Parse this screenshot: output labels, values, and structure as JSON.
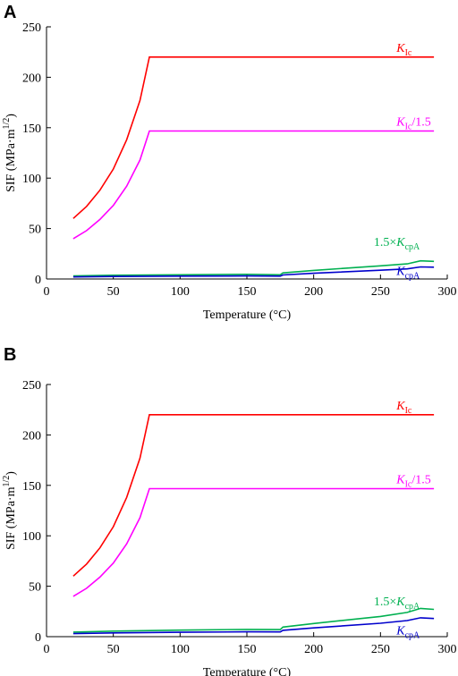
{
  "chart_data": [
    {
      "panel": "A",
      "type": "line",
      "xlabel": "Temperature (°C)",
      "ylabel_main": "SIF (MPa·m",
      "ylabel_sup": "1/2",
      "ylabel_close": ")",
      "xlim": [
        0,
        300
      ],
      "ylim": [
        0,
        250
      ],
      "xticks": [
        "0",
        "50",
        "100",
        "150",
        "200",
        "250",
        "300"
      ],
      "yticks": [
        "0",
        "50",
        "100",
        "150",
        "200",
        "250"
      ],
      "series": [
        {
          "key": "kic",
          "color": "#ff0000",
          "label_main": "K",
          "label_sub": "Ic",
          "label_suffix": "",
          "label_x": 262,
          "label_y": 225,
          "x": [
            20,
            30,
            40,
            50,
            60,
            70,
            77,
            100,
            150,
            200,
            250,
            290
          ],
          "y": [
            60,
            72,
            88,
            109,
            138,
            177,
            220,
            220,
            220,
            220,
            220,
            220
          ]
        },
        {
          "key": "kic15",
          "color": "#ff00ff",
          "label_main": "K",
          "label_sub": "Ic",
          "label_suffix": "/1.5",
          "label_x": 262,
          "label_y": 152,
          "x": [
            20,
            30,
            40,
            50,
            60,
            70,
            77,
            100,
            150,
            200,
            250,
            290
          ],
          "y": [
            40,
            48,
            59,
            73,
            92,
            118,
            146.7,
            146.7,
            146.7,
            146.7,
            146.7,
            146.7
          ]
        },
        {
          "key": "k15",
          "color": "#00b050",
          "label_main": "K",
          "label_sub": "cpA",
          "label_suffix": "",
          "label_prefix": "1.5×",
          "label_x": 245,
          "label_y": 33,
          "x": [
            20,
            50,
            100,
            150,
            175,
            177,
            200,
            250,
            270,
            280,
            290
          ],
          "y": [
            3,
            3.7,
            4.2,
            4.6,
            4.2,
            6,
            8.5,
            13,
            15,
            18,
            17.5
          ]
        },
        {
          "key": "kcpa",
          "color": "#0000cc",
          "label_main": "K",
          "label_sub": "cpA",
          "label_suffix": "",
          "label_prefix": "",
          "label_x": 262,
          "label_y": 4,
          "x": [
            20,
            50,
            100,
            150,
            175,
            177,
            200,
            250,
            270,
            280,
            290
          ],
          "y": [
            2,
            2.5,
            2.8,
            3,
            2.8,
            4,
            5.7,
            8.7,
            10,
            12,
            11.7
          ]
        }
      ]
    },
    {
      "panel": "B",
      "type": "line",
      "xlabel": "Temperature (°C)",
      "ylabel_main": "SIF (MPa·m",
      "ylabel_sup": "1/2",
      "ylabel_close": ")",
      "xlim": [
        0,
        300
      ],
      "ylim": [
        0,
        250
      ],
      "xticks": [
        "0",
        "50",
        "100",
        "150",
        "200",
        "250",
        "300"
      ],
      "yticks": [
        "0",
        "50",
        "100",
        "150",
        "200",
        "250"
      ],
      "series": [
        {
          "key": "kic",
          "color": "#ff0000",
          "label_main": "K",
          "label_sub": "Ic",
          "label_suffix": "",
          "label_x": 262,
          "label_y": 225,
          "x": [
            20,
            30,
            40,
            50,
            60,
            70,
            77,
            100,
            150,
            200,
            250,
            290
          ],
          "y": [
            60,
            72,
            88,
            109,
            138,
            177,
            220,
            220,
            220,
            220,
            220,
            220
          ]
        },
        {
          "key": "kic15",
          "color": "#ff00ff",
          "label_main": "K",
          "label_sub": "Ic",
          "label_suffix": "/1.5",
          "label_x": 262,
          "label_y": 152,
          "x": [
            20,
            30,
            40,
            50,
            60,
            70,
            77,
            100,
            150,
            200,
            250,
            290
          ],
          "y": [
            40,
            48,
            59,
            73,
            92,
            118,
            146.7,
            146.7,
            146.7,
            146.7,
            146.7,
            146.7
          ]
        },
        {
          "key": "k15",
          "color": "#00b050",
          "label_main": "K",
          "label_sub": "cpA",
          "label_suffix": "",
          "label_prefix": "1.5×",
          "label_x": 245,
          "label_y": 31,
          "x": [
            20,
            50,
            100,
            150,
            175,
            177,
            200,
            250,
            270,
            280,
            290
          ],
          "y": [
            4.5,
            5.5,
            6.5,
            7.2,
            7,
            9.5,
            13,
            20,
            24,
            28,
            27
          ]
        },
        {
          "key": "kcpa",
          "color": "#0000cc",
          "label_main": "K",
          "label_sub": "cpA",
          "label_suffix": "",
          "label_prefix": "",
          "label_x": 262,
          "label_y": 2,
          "x": [
            20,
            50,
            100,
            150,
            175,
            177,
            200,
            250,
            270,
            280,
            290
          ],
          "y": [
            3,
            3.7,
            4.3,
            4.8,
            4.7,
            6.3,
            8.7,
            13.3,
            16,
            18.7,
            18
          ]
        }
      ]
    }
  ],
  "panels": {
    "A": {
      "label": "A"
    },
    "B": {
      "label": "B"
    }
  }
}
